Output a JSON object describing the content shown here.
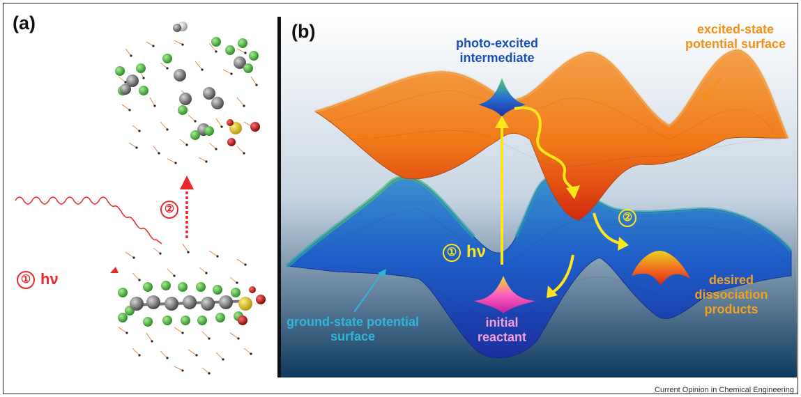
{
  "panel_a": {
    "label": "(a)",
    "excitation_step": {
      "number": "①",
      "text": "hν"
    },
    "dissociation_step": {
      "number": "②"
    }
  },
  "panel_b": {
    "label": "(b)",
    "annotations": {
      "photo_excited": "photo-excited intermediate",
      "excited_surface": "excited-state potential surface",
      "ground_surface": "ground-state potential surface",
      "initial_reactant": "initial reactant",
      "desired_products": "desired dissociation products"
    },
    "excitation_step": {
      "number": "①",
      "text": "hν"
    },
    "dissociation_step": {
      "number": "②"
    }
  },
  "caption": "Current Opinion in Chemical Engineering",
  "colors": {
    "red_arrow": "#e8282c",
    "yellow_arrow": "#ffe61a",
    "excited_surface": "#f07a18",
    "ground_surface": "#1f5ec8",
    "carbon": "#7a7a7a",
    "fluorine": "#5cc24a",
    "sulfur": "#e0c020",
    "oxygen": "#c01818"
  }
}
